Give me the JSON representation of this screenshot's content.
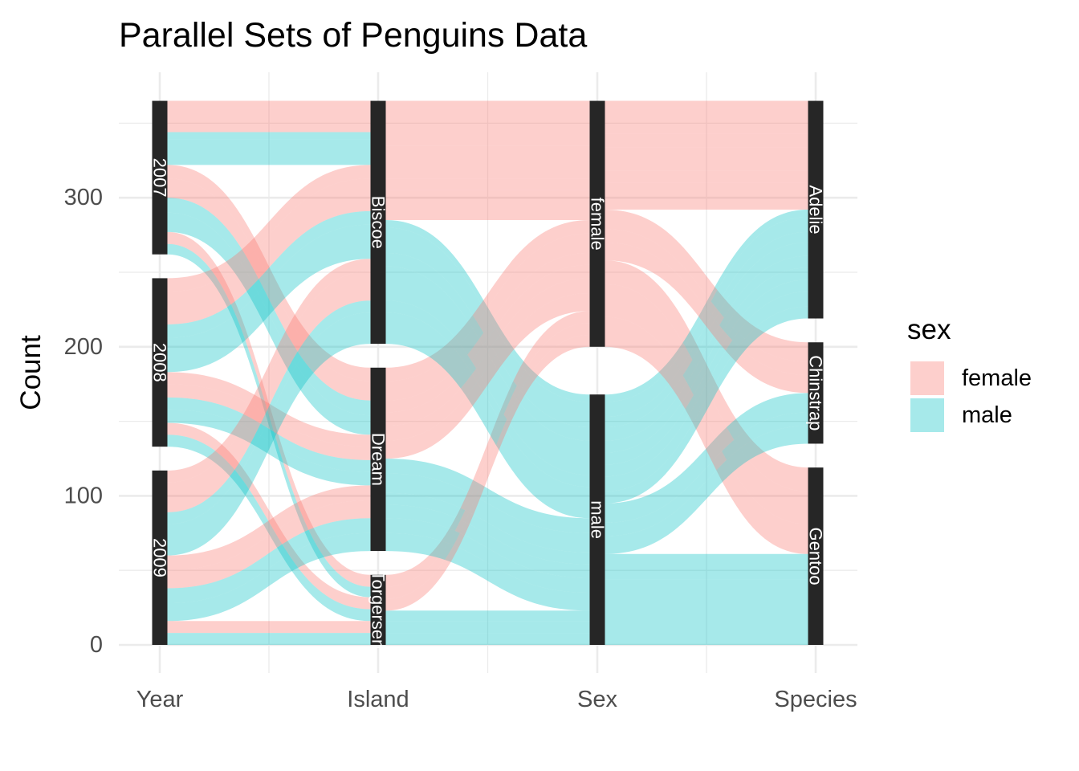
{
  "chart_data": {
    "type": "alluvial",
    "title": "Parallel Sets of Penguins Data",
    "ylabel": "Count",
    "xlabel": "",
    "axes": [
      "Year",
      "Island",
      "Sex",
      "Species"
    ],
    "ylim": [
      0,
      365
    ],
    "yticks": [
      0,
      100,
      200,
      300
    ],
    "grid": true,
    "legend": {
      "title": "sex",
      "placement": "right",
      "entries": [
        {
          "label": "female",
          "color": "#F8766D"
        },
        {
          "label": "male",
          "color": "#00BFC4"
        }
      ]
    },
    "fill_alpha": 0.35,
    "stratum_color": "#262626",
    "strata": {
      "Year": [
        {
          "label": "2007",
          "values": [
            "2007"
          ]
        },
        {
          "label": "2008",
          "values": [
            "2008"
          ]
        },
        {
          "label": "2009",
          "values": [
            "2009"
          ]
        }
      ],
      "Island": [
        {
          "label": "Biscoe",
          "values": [
            "Biscoe"
          ]
        },
        {
          "label": "Dream",
          "values": [
            "Dream"
          ]
        },
        {
          "label": "Torgersen",
          "values": [
            "Torgersen"
          ]
        }
      ],
      "Sex": [
        {
          "label": "female",
          "values": [
            "female"
          ]
        },
        {
          "label": "male",
          "values": [
            "male"
          ]
        }
      ],
      "Species": [
        {
          "label": "Adelie",
          "values": [
            "Adelie"
          ]
        },
        {
          "label": "Chinstrap",
          "values": [
            "Chinstrap"
          ]
        },
        {
          "label": "Gentoo",
          "values": [
            "Gentoo"
          ]
        }
      ]
    },
    "cohorts": [
      {
        "Year": "2007",
        "Island": "Biscoe",
        "Sex": "female",
        "Species": "Adelie",
        "count": 5
      },
      {
        "Year": "2007",
        "Island": "Biscoe",
        "Sex": "female",
        "Species": "Gentoo",
        "count": 16
      },
      {
        "Year": "2007",
        "Island": "Biscoe",
        "Sex": "male",
        "Species": "Adelie",
        "count": 5
      },
      {
        "Year": "2007",
        "Island": "Biscoe",
        "Sex": "male",
        "Species": "Gentoo",
        "count": 17
      },
      {
        "Year": "2007",
        "Island": "Dream",
        "Sex": "female",
        "Species": "Adelie",
        "count": 9
      },
      {
        "Year": "2007",
        "Island": "Dream",
        "Sex": "female",
        "Species": "Chinstrap",
        "count": 13
      },
      {
        "Year": "2007",
        "Island": "Dream",
        "Sex": "male",
        "Species": "Adelie",
        "count": 10
      },
      {
        "Year": "2007",
        "Island": "Dream",
        "Sex": "male",
        "Species": "Chinstrap",
        "count": 13
      },
      {
        "Year": "2007",
        "Island": "Torgersen",
        "Sex": "female",
        "Species": "Adelie",
        "count": 8
      },
      {
        "Year": "2007",
        "Island": "Torgersen",
        "Sex": "male",
        "Species": "Adelie",
        "count": 7
      },
      {
        "Year": "2008",
        "Island": "Biscoe",
        "Sex": "female",
        "Species": "Adelie",
        "count": 9
      },
      {
        "Year": "2008",
        "Island": "Biscoe",
        "Sex": "female",
        "Species": "Gentoo",
        "count": 22
      },
      {
        "Year": "2008",
        "Island": "Biscoe",
        "Sex": "male",
        "Species": "Adelie",
        "count": 9
      },
      {
        "Year": "2008",
        "Island": "Biscoe",
        "Sex": "male",
        "Species": "Gentoo",
        "count": 23
      },
      {
        "Year": "2008",
        "Island": "Dream",
        "Sex": "female",
        "Species": "Adelie",
        "count": 8
      },
      {
        "Year": "2008",
        "Island": "Dream",
        "Sex": "female",
        "Species": "Chinstrap",
        "count": 9
      },
      {
        "Year": "2008",
        "Island": "Dream",
        "Sex": "male",
        "Species": "Adelie",
        "count": 8
      },
      {
        "Year": "2008",
        "Island": "Dream",
        "Sex": "male",
        "Species": "Chinstrap",
        "count": 9
      },
      {
        "Year": "2008",
        "Island": "Torgersen",
        "Sex": "female",
        "Species": "Adelie",
        "count": 8
      },
      {
        "Year": "2008",
        "Island": "Torgersen",
        "Sex": "male",
        "Species": "Adelie",
        "count": 8
      },
      {
        "Year": "2009",
        "Island": "Biscoe",
        "Sex": "female",
        "Species": "Adelie",
        "count": 8
      },
      {
        "Year": "2009",
        "Island": "Biscoe",
        "Sex": "female",
        "Species": "Gentoo",
        "count": 20
      },
      {
        "Year": "2009",
        "Island": "Biscoe",
        "Sex": "male",
        "Species": "Adelie",
        "count": 8
      },
      {
        "Year": "2009",
        "Island": "Biscoe",
        "Sex": "male",
        "Species": "Gentoo",
        "count": 21
      },
      {
        "Year": "2009",
        "Island": "Dream",
        "Sex": "female",
        "Species": "Adelie",
        "count": 10
      },
      {
        "Year": "2009",
        "Island": "Dream",
        "Sex": "female",
        "Species": "Chinstrap",
        "count": 12
      },
      {
        "Year": "2009",
        "Island": "Dream",
        "Sex": "male",
        "Species": "Adelie",
        "count": 10
      },
      {
        "Year": "2009",
        "Island": "Dream",
        "Sex": "male",
        "Species": "Chinstrap",
        "count": 12
      },
      {
        "Year": "2009",
        "Island": "Torgersen",
        "Sex": "female",
        "Species": "Adelie",
        "count": 8
      },
      {
        "Year": "2009",
        "Island": "Torgersen",
        "Sex": "male",
        "Species": "Adelie",
        "count": 8
      }
    ]
  }
}
